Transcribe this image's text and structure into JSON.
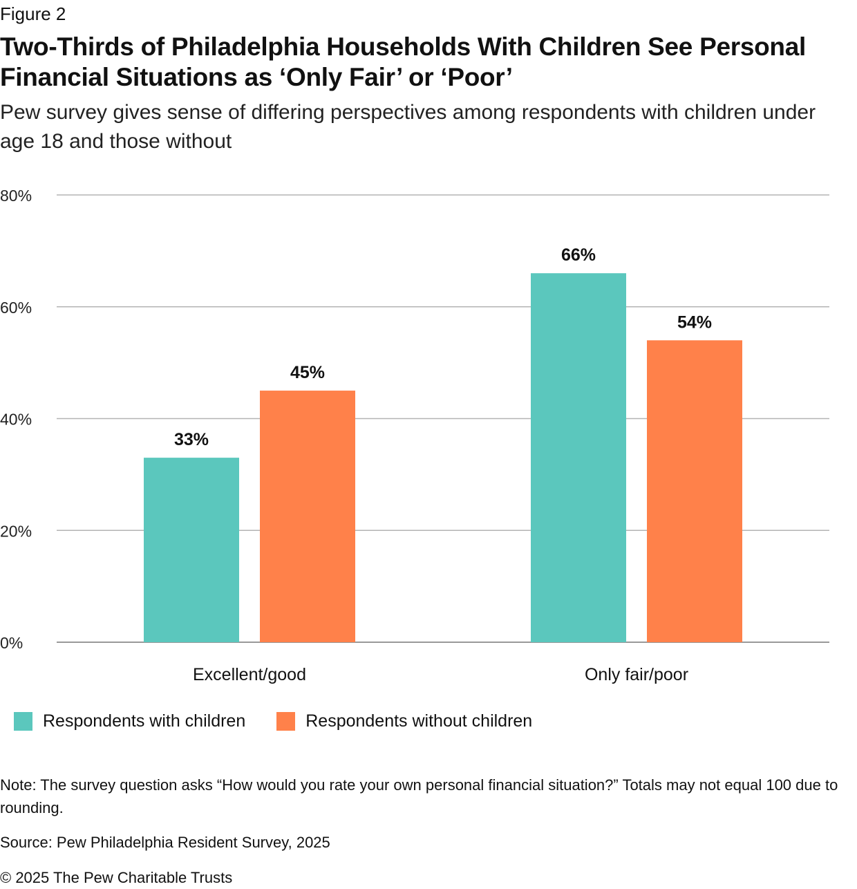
{
  "figure_label": "Figure 2",
  "title": "Two-Thirds of Philadelphia Households With Children See Personal Financial Situations as ‘Only Fair’ or ‘Poor’",
  "subtitle": "Pew survey gives sense of differing perspectives among respondents with children under age 18 and those without",
  "note": "Note: The survey question asks “How would you rate your own personal financial situation?” Totals may not equal 100 due to rounding.",
  "source": "Source: Pew Philadelphia Resident Survey, 2025",
  "copyright": "© 2025 The Pew Charitable Trusts",
  "legend": [
    {
      "label": "Respondents with children",
      "color": "#5bc7bd"
    },
    {
      "label": "Respondents without children",
      "color": "#ff814a"
    }
  ],
  "chart_data": {
    "type": "bar",
    "categories": [
      "Excellent/good",
      "Only fair/poor"
    ],
    "series": [
      {
        "name": "Respondents with children",
        "values": [
          33,
          66
        ],
        "labels": [
          "33%",
          "66%"
        ],
        "color": "#5bc7bd"
      },
      {
        "name": "Respondents without children",
        "values": [
          45,
          54
        ],
        "labels": [
          "45%",
          "54%"
        ],
        "color": "#ff814a"
      }
    ],
    "ylim": [
      0,
      80
    ],
    "yticks": [
      0,
      20,
      40,
      60,
      80
    ],
    "ytick_labels": [
      "0%",
      "20%",
      "40%",
      "60%",
      "80%"
    ],
    "grid": true,
    "legend_position": "bottom-left",
    "xlabel": "",
    "ylabel": ""
  }
}
